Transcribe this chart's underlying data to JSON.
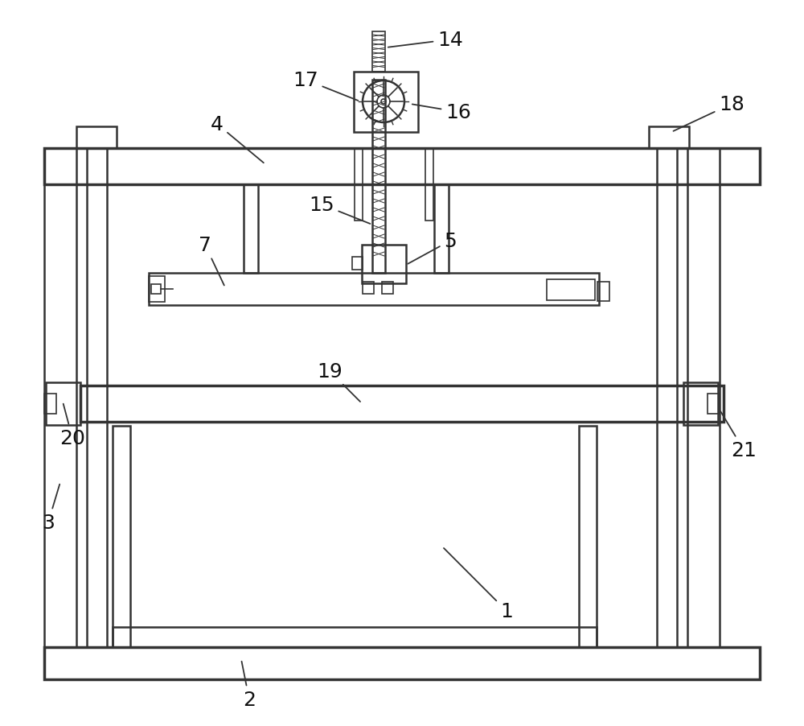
{
  "bg_color": "#ffffff",
  "line_color": "#333333",
  "lw_thick": 2.5,
  "lw_med": 1.8,
  "lw_thin": 1.2,
  "label_fontsize": 18,
  "label_color": "#111111"
}
